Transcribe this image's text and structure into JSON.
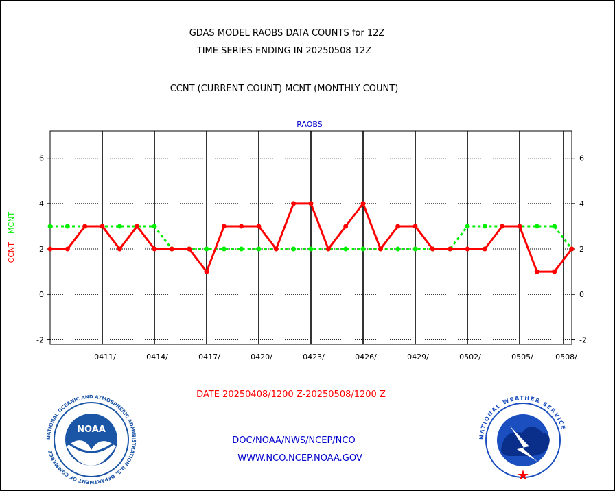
{
  "header": {
    "title_line1": "GDAS MODEL RAOBS DATA COUNTS for 12Z",
    "title_line2": "TIME SERIES ENDING IN 20250508 12Z",
    "subtitle": "CCNT (CURRENT COUNT) MCNT (MONTHLY COUNT)"
  },
  "chart_data": {
    "type": "line",
    "title": "RAOBS",
    "ylabel_left_1": "CCNT",
    "ylabel_left_2": "MCNT",
    "xlabel": "DATE 20250408/1200 Z-20250508/1200 Z",
    "ylim": [
      -2.2,
      7.2
    ],
    "yticks": [
      -2,
      0,
      2,
      4,
      6
    ],
    "ytick_labels": [
      "-2",
      "0",
      "2",
      "4",
      "6"
    ],
    "x": [
      "0408",
      "0409",
      "0410",
      "0411",
      "0412",
      "0413",
      "0414",
      "0415",
      "0416",
      "0417",
      "0418",
      "0419",
      "0420",
      "0421",
      "0422",
      "0423",
      "0424",
      "0425",
      "0426",
      "0427",
      "0428",
      "0429",
      "0430",
      "0501",
      "0502",
      "0503",
      "0504",
      "0505",
      "0506",
      "0507",
      "0508"
    ],
    "xtick_labels": [
      "0411/",
      "0414/",
      "0417/",
      "0420/",
      "0423/",
      "0426/",
      "0429/",
      "0502/",
      "0505/",
      "0508/"
    ],
    "xtick_positions": [
      "0411",
      "0414",
      "0417",
      "0420",
      "0423",
      "0426",
      "0429",
      "0502",
      "0505",
      "0508"
    ],
    "grid": true,
    "series": [
      {
        "name": "CCNT",
        "color": "#ff0000",
        "style": "solid",
        "values": [
          2,
          2,
          3,
          3,
          2,
          3,
          2,
          2,
          2,
          1,
          3,
          3,
          3,
          2,
          4,
          4,
          2,
          3,
          4,
          2,
          3,
          3,
          2,
          2,
          2,
          2,
          3,
          3,
          1,
          1,
          2
        ]
      },
      {
        "name": "MCNT",
        "color": "#00ee00",
        "style": "dotted",
        "values": [
          3,
          3,
          3,
          3,
          3,
          3,
          3,
          2,
          2,
          2,
          2,
          2,
          2,
          2,
          2,
          2,
          2,
          2,
          2,
          2,
          2,
          2,
          2,
          2,
          3,
          3,
          3,
          3,
          3,
          3,
          2
        ]
      }
    ]
  },
  "footer": {
    "agency_line": "DOC/NOAA/NWS/NCEP/NCO",
    "url_line": "WWW.NCO.NCEP.NOAA.GOV"
  },
  "logos": {
    "left": {
      "icon": "noaa-logo",
      "text": "NOAA",
      "ring_text": "NATIONAL OCEANIC AND ATMOSPHERIC ADMINISTRATION U.S. DEPARTMENT OF COMMERCE"
    },
    "right": {
      "icon": "nws-logo",
      "ring_text": "NATIONAL WEATHER SERVICE"
    }
  },
  "colors": {
    "text_black": "#000000",
    "text_blue": "#0000cc",
    "text_red": "#ff0000",
    "mcnt_green": "#00ee00",
    "noaa_blue": "#1b55a6",
    "nws_blue": "#1b4fbf"
  }
}
